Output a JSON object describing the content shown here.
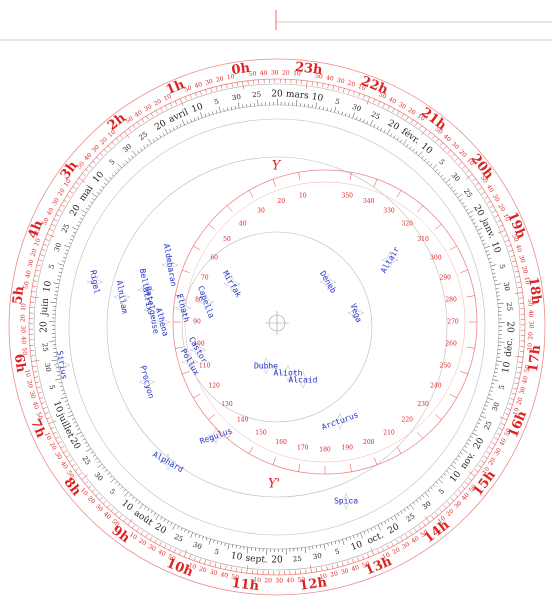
{
  "hour_ring": {
    "labels": [
      "0h",
      "1h",
      "2h",
      "3h",
      "4h",
      "5h",
      "6h",
      "7h",
      "8h",
      "9h",
      "10h",
      "11h",
      "12h",
      "13h",
      "14h",
      "15h",
      "16h",
      "17h",
      "18h",
      "19h",
      "20h",
      "21h",
      "22h",
      "23h"
    ],
    "minute_labels": [
      10,
      20,
      30,
      40,
      50
    ]
  },
  "date_ring": {
    "months": [
      "mars",
      "avril",
      "mai",
      "juin",
      "juillet",
      "août",
      "sept.",
      "oct.",
      "nov.",
      "déc.",
      "janv.",
      "févr."
    ],
    "day_labels": [
      5,
      10,
      15,
      20,
      25,
      30
    ]
  },
  "azimuth_ring": {
    "labels": [
      10,
      20,
      30,
      40,
      50,
      60,
      70,
      80,
      90,
      100,
      110,
      120,
      130,
      140,
      150,
      160,
      170,
      180,
      190,
      200,
      210,
      220,
      230,
      240,
      250,
      260,
      270,
      280,
      290,
      300,
      310,
      320,
      330,
      340,
      350
    ],
    "markers": [
      "Y",
      "Y'"
    ]
  },
  "stars": [
    "Altair",
    "Deneb",
    "Vega",
    "Mirfak",
    "Capella",
    "Elnath",
    "Aldebaran",
    "Bellatrix",
    "Betelgeuse",
    "Alnilam",
    "Rigel",
    "Alhena",
    "Castor",
    "Pollux",
    "Sirius",
    "Procyon",
    "Dubhe",
    "Alioth",
    "Alcaid",
    "Regulus",
    "Arcturus",
    "Alphard",
    "Spica"
  ]
}
